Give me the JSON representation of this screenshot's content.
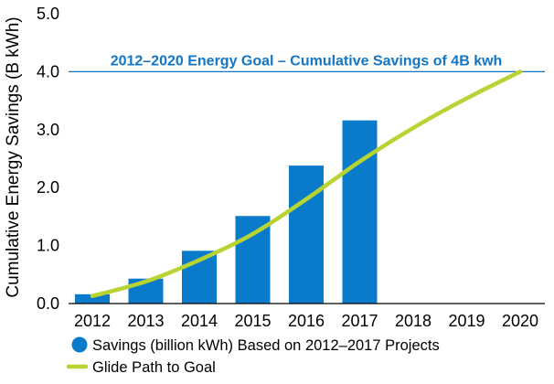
{
  "chart_data": {
    "type": "bar",
    "ylabel": "Cumulative Energy Savings (B kWh)",
    "ylim": [
      0,
      5
    ],
    "yticks": [
      "0.0",
      "1.0",
      "2.0",
      "3.0",
      "4.0",
      "5.0"
    ],
    "categories": [
      "2012",
      "2013",
      "2014",
      "2015",
      "2016",
      "2017",
      "2018",
      "2019",
      "2020"
    ],
    "series": [
      {
        "name": "Savings (billion kWh) Based on 2012–2017 Projects",
        "type": "bar",
        "color": "#0a7bcb",
        "values": [
          0.16,
          0.43,
          0.91,
          1.51,
          2.38,
          3.16,
          null,
          null,
          null
        ]
      },
      {
        "name": "Glide Path to Goal",
        "type": "line",
        "color": "#b8d433",
        "values": [
          0.13,
          0.38,
          0.75,
          1.2,
          1.8,
          2.45,
          3.03,
          3.54,
          4.0
        ]
      }
    ],
    "goal": {
      "value": 4.0,
      "label": "2012–2020 Energy Goal – Cumulative Savings of 4B kwh",
      "color": "#1276c4"
    },
    "grid": false,
    "legend_position": "bottom-left"
  }
}
